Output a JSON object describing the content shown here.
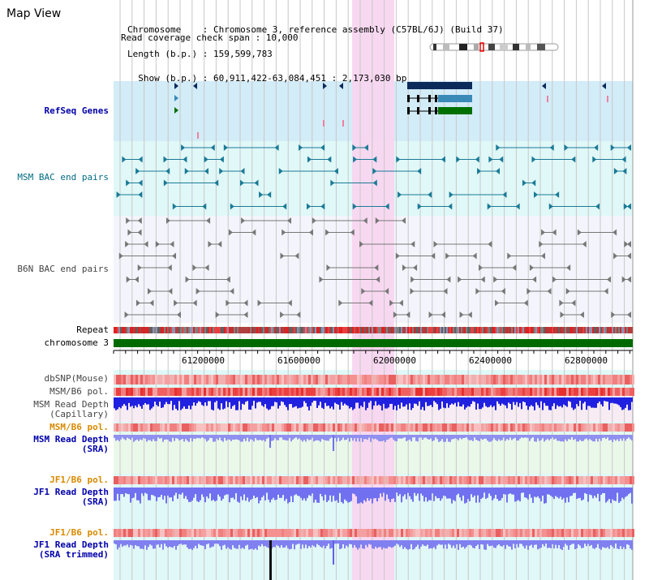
{
  "title": "Map View",
  "header": {
    "line1": "Chromosome    : Chromosome 3, reference assembly (C57BL/6J) (Build 37)",
    "line2": "Length (b.p.) : 159,599,783",
    "line3": "  Show (b.p.) : 60,911,422-63,084,451 : 2,173,030 bp",
    "line4": "Read coverage check span : 10,000"
  },
  "tracks": {
    "refseq": "RefSeq Genes",
    "msm_bac": "MSM BAC end pairs",
    "b6n_bac": "B6N BAC end pairs",
    "repeat": "Repeat",
    "chromosome": "chromosome 3",
    "dbsnp": "dbSNP(Mouse)",
    "msm_b6_pol_1": "MSM/B6 pol.",
    "msm_depth_cap_1": "MSM Read Depth",
    "msm_depth_cap_2": "(Capillary)",
    "msm_b6_pol_2": "MSM/B6 pol.",
    "msm_depth_sra_1": "MSM Read Depth",
    "msm_depth_sra_2": "(SRA)",
    "jf1_b6_pol_1": "JF1/B6 pol.",
    "jf1_depth_1": "JF1 Read Depth",
    "jf1_depth_2": "(SRA)",
    "jf1_b6_pol_2": "JF1/B6 pol.",
    "jf1_trim_1": "JF1 Read Depth",
    "jf1_trim_2": "(SRA trimmed)"
  },
  "axis": {
    "ticks": [
      "61200000",
      "61600000",
      "62000000",
      "62400000",
      "62800000"
    ]
  },
  "colors": {
    "highlight": "#f8d6f0",
    "refseq_bg": "#d2ecf8",
    "msm_bac_bg": "#e0f8f8",
    "chromosome_bar": "#006a00",
    "gene_dark": "#0c2a5a",
    "gene_mid": "#3a8ab8",
    "gene_green": "#007000",
    "teal": "#1a7a96"
  }
}
